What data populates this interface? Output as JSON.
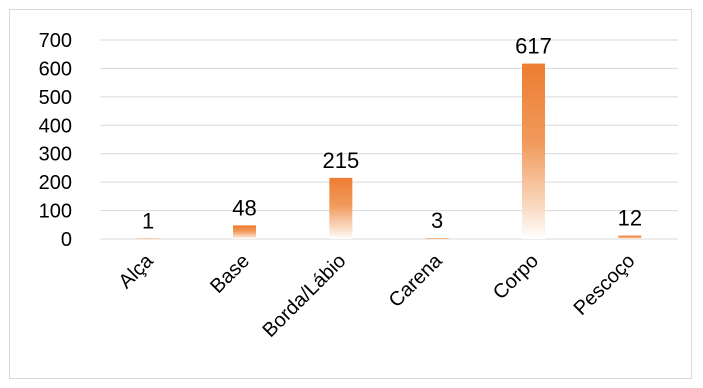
{
  "chart_data": {
    "type": "bar",
    "title": "",
    "xlabel": "",
    "ylabel": "",
    "categories": [
      "Alça",
      "Base",
      "Borda/Lábio",
      "Carena",
      "Corpo",
      "Pescoço"
    ],
    "values": [
      1,
      48,
      215,
      3,
      617,
      12
    ],
    "data_labels": [
      "1",
      "48",
      "215",
      "3",
      "617",
      "12"
    ],
    "ylim": [
      0,
      700
    ],
    "yticks": [
      "0",
      "100",
      "200",
      "300",
      "400",
      "500",
      "600",
      "700"
    ],
    "grid": true,
    "legend": "none",
    "bar_color": "#ed7d31",
    "bar_fill": "gradient fading to white at the baseline",
    "gridline_color": "#d9d9d9"
  }
}
